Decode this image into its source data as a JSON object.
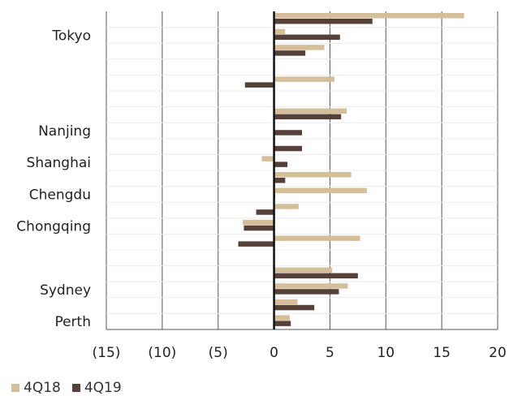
{
  "chart_data": {
    "type": "bar",
    "orientation": "horizontal",
    "xlim": [
      -15,
      20
    ],
    "x_ticks": [
      -15,
      -10,
      -5,
      0,
      5,
      10,
      15,
      20
    ],
    "x_tick_labels": [
      "(15)",
      "(10)",
      "(5)",
      "0",
      "5",
      "10",
      "15",
      "20"
    ],
    "grid": "vertical",
    "legend_position": "bottom-left",
    "categories": [
      "",
      "Tokyo",
      "",
      "",
      "",
      "",
      "",
      "Nanjing",
      "",
      "Shanghai",
      "",
      "Chengdu",
      "",
      "Chongqing",
      "",
      "",
      "",
      "Sydney",
      "",
      "Perth"
    ],
    "series": [
      {
        "name": "4Q18",
        "color": "#d5bf9a",
        "values": [
          17.0,
          1.0,
          4.5,
          null,
          5.4,
          null,
          6.5,
          null,
          null,
          -1.1,
          6.9,
          8.3,
          2.2,
          -2.8,
          7.7,
          null,
          5.2,
          6.6,
          2.1,
          1.4
        ]
      },
      {
        "name": "4Q19",
        "color": "#56413a",
        "values": [
          8.8,
          5.9,
          2.8,
          null,
          -2.6,
          null,
          6.0,
          2.5,
          2.5,
          1.2,
          1.0,
          0.1,
          -1.6,
          -2.7,
          -3.2,
          null,
          7.5,
          5.8,
          3.6,
          1.5
        ]
      }
    ]
  }
}
